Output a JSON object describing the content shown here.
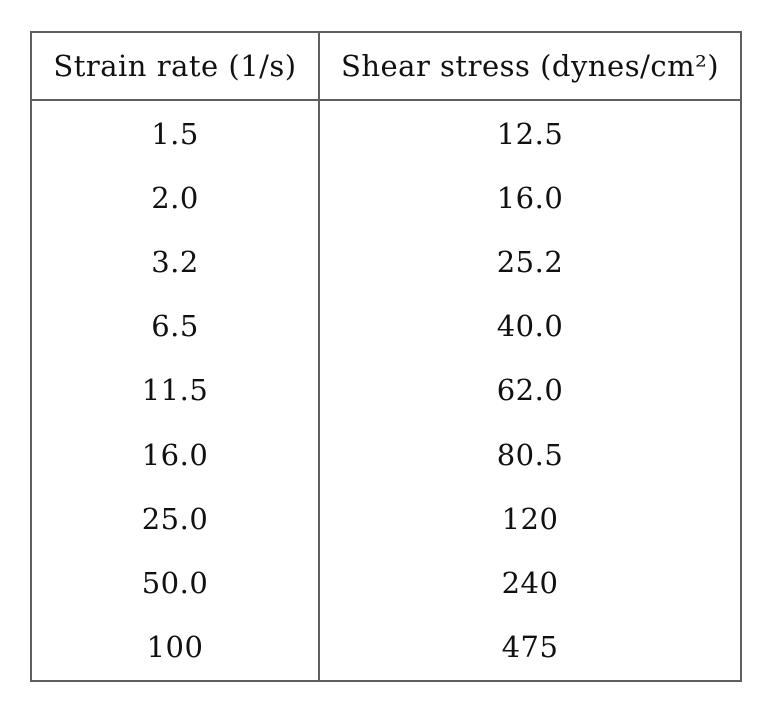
{
  "table": {
    "headers": [
      "Strain rate (1/s)",
      "Shear stress (dynes/cm²)"
    ],
    "rows": [
      [
        "1.5",
        "12.5"
      ],
      [
        "2.0",
        "16.0"
      ],
      [
        "3.2",
        "25.2"
      ],
      [
        "6.5",
        "40.0"
      ],
      [
        "11.5",
        "62.0"
      ],
      [
        "16.0",
        "80.5"
      ],
      [
        "25.0",
        "120"
      ],
      [
        "50.0",
        "240"
      ],
      [
        "100",
        "475"
      ]
    ]
  },
  "chart_data": {
    "type": "table",
    "columns": [
      "Strain rate (1/s)",
      "Shear stress (dynes/cm^2)"
    ],
    "strain_rate_1_per_s": [
      1.5,
      2.0,
      3.2,
      6.5,
      11.5,
      16.0,
      25.0,
      50.0,
      100
    ],
    "shear_stress_dynes_per_cm2": [
      12.5,
      16.0,
      25.2,
      40.0,
      62.0,
      80.5,
      120,
      240,
      475
    ]
  },
  "colors": {
    "border": "#5f5f5f",
    "text": "#111111",
    "background": "#ffffff"
  }
}
